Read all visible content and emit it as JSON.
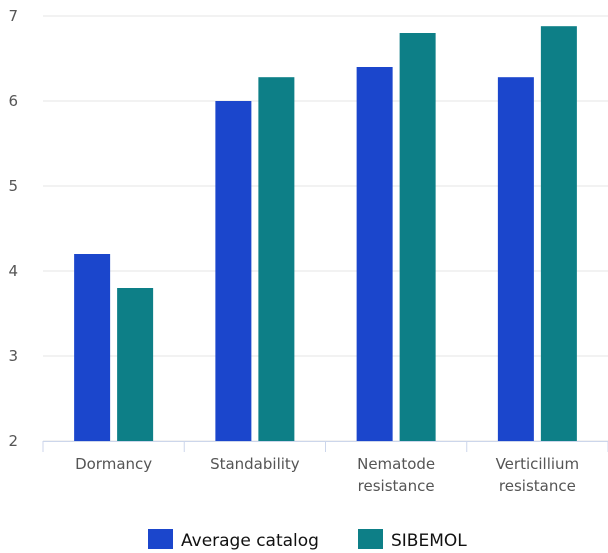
{
  "chart_data": {
    "type": "bar",
    "categories": [
      [
        "Dormancy"
      ],
      [
        "Standability"
      ],
      [
        "Nematode",
        "resistance"
      ],
      [
        "Verticillium",
        "resistance"
      ]
    ],
    "series": [
      {
        "name": "Average catalog",
        "values": [
          4.2,
          6.0,
          6.4,
          6.28
        ],
        "color": "#1b46cc"
      },
      {
        "name": "SIBEMOL",
        "values": [
          3.8,
          6.28,
          6.8,
          6.88
        ],
        "color": "#0d7f87"
      }
    ],
    "ylim": [
      2,
      7
    ],
    "yticks": [
      "2",
      "3",
      "4",
      "5",
      "6",
      "7"
    ],
    "grid": true,
    "legend_position": "bottom-center",
    "colors": {
      "grid": "#e5e5e5",
      "axis": "#ccd6eb",
      "text": "#555555"
    }
  }
}
